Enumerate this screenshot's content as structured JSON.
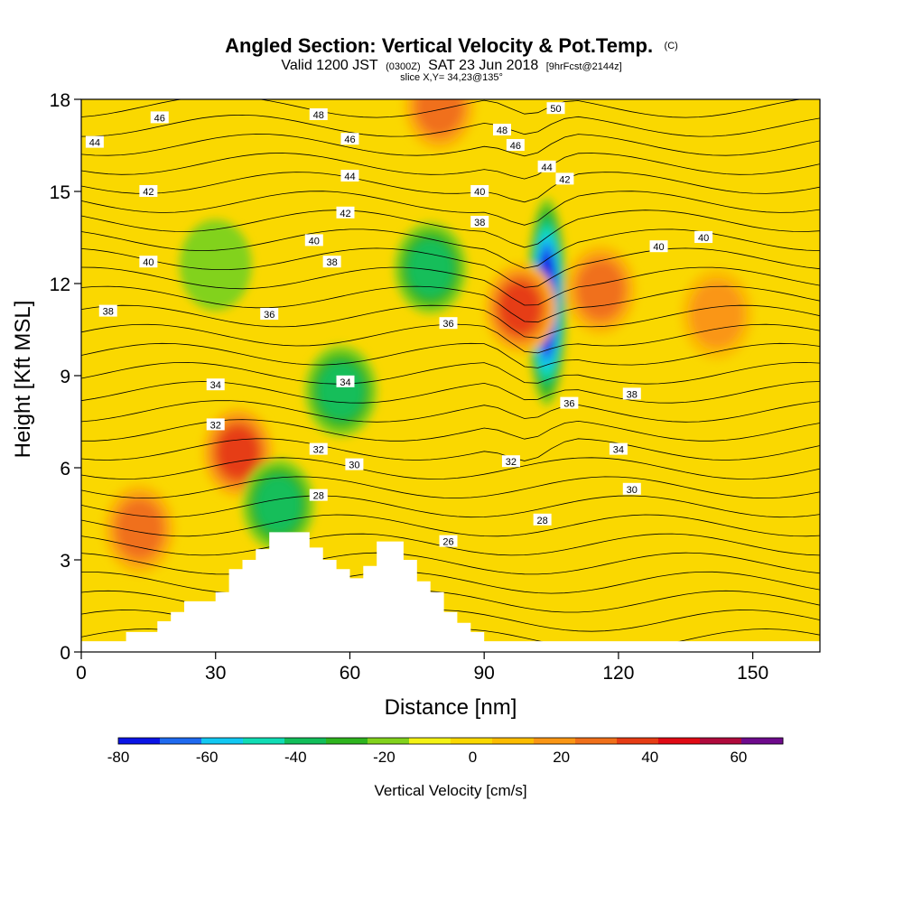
{
  "chart_data": {
    "type": "heatmap",
    "title": "Angled Section: Vertical Velocity & Pot.Temp.",
    "title_mark": "(C)",
    "subtitle_parts": [
      "Valid 1200 JST",
      "(0300Z)",
      "SAT 23 Jun 2018",
      "[9hrFcst@2144z]"
    ],
    "slice_label": "slice X,Y= 34,23@135°",
    "xlabel": "Distance [nm]",
    "ylabel": "Height [Kft MSL]",
    "xlim": [
      0,
      165
    ],
    "ylim": [
      0,
      18
    ],
    "x_ticks": [
      0,
      30,
      60,
      90,
      120,
      150
    ],
    "y_ticks": [
      0,
      3,
      6,
      9,
      12,
      15,
      18
    ],
    "grid": false,
    "colorbar": {
      "label": "Vertical Velocity [cm/s]",
      "min": -80,
      "max": 70,
      "step": 10,
      "tick_values": [
        -80,
        -60,
        -40,
        -20,
        0,
        20,
        40,
        60
      ],
      "colors": [
        "#0a14e6",
        "#1f6af0",
        "#12c8f2",
        "#10dcb4",
        "#12be5a",
        "#2eb41e",
        "#82d21c",
        "#f4f214",
        "#fad800",
        "#fcbc00",
        "#fa9614",
        "#f0701a",
        "#e63c14",
        "#e00a14",
        "#b00a3c",
        "#6e0a8c"
      ]
    },
    "background_value": 5,
    "features": [
      {
        "kind": "downdraft",
        "name": "strong downdraft core",
        "x": 104,
        "y": 11.4,
        "peak": -75
      },
      {
        "kind": "updraft",
        "name": "updraft west of core",
        "x": 98,
        "y": 11.2,
        "peak": 45
      },
      {
        "kind": "updraft",
        "name": "updraft near summit",
        "x": 80,
        "y": 17.8,
        "peak": 32
      },
      {
        "kind": "updraft",
        "name": "lee wave updraft",
        "x": 35,
        "y": 6.5,
        "peak": 40
      },
      {
        "kind": "updraft",
        "name": "low-level updraft",
        "x": 13,
        "y": 4.0,
        "peak": 30
      },
      {
        "kind": "downdraft",
        "name": "downslope band",
        "x": 44,
        "y": 4.8,
        "peak": -38
      },
      {
        "kind": "downdraft",
        "name": "mid-level band",
        "x": 58,
        "y": 8.5,
        "peak": -32
      },
      {
        "kind": "downdraft",
        "name": "upper sinking band",
        "x": 78,
        "y": 12.5,
        "peak": -30
      },
      {
        "kind": "downdraft",
        "name": "upper-left sinking",
        "x": 30,
        "y": 12.6,
        "peak": -15
      },
      {
        "kind": "updraft",
        "name": "right-side updraft",
        "x": 116,
        "y": 11.8,
        "peak": 30
      },
      {
        "kind": "updraft",
        "name": "far-right updraft",
        "x": 142,
        "y": 11.0,
        "peak": 20
      }
    ],
    "terrain_profile": {
      "x": [
        0,
        10,
        10,
        17,
        17,
        20,
        20,
        23,
        23,
        30,
        30,
        33,
        33,
        36,
        36,
        39,
        39,
        42,
        42,
        45,
        45,
        51,
        51,
        54,
        54,
        57,
        57,
        60,
        60,
        63,
        63,
        66,
        66,
        69,
        69,
        72,
        72,
        75,
        75,
        78,
        78,
        81,
        81,
        84,
        84,
        87,
        87,
        90,
        90,
        165
      ],
      "height": [
        0.35,
        0.35,
        0.65,
        0.65,
        1.0,
        1.0,
        1.3,
        1.3,
        1.65,
        1.65,
        1.95,
        1.95,
        2.7,
        2.7,
        3.0,
        3.0,
        3.35,
        3.35,
        3.9,
        3.9,
        3.9,
        3.9,
        3.4,
        3.4,
        3.0,
        3.0,
        2.7,
        2.7,
        2.4,
        2.4,
        2.8,
        2.8,
        3.6,
        3.6,
        3.6,
        3.6,
        3.0,
        3.0,
        2.3,
        2.3,
        1.95,
        1.95,
        1.3,
        1.3,
        0.95,
        0.95,
        0.65,
        0.65,
        0.35,
        0.35
      ]
    },
    "isentrope_labels": [
      {
        "value": "46",
        "x": 17.5,
        "y": 17.4
      },
      {
        "value": "44",
        "x": 3,
        "y": 16.6
      },
      {
        "value": "48",
        "x": 53,
        "y": 17.5
      },
      {
        "value": "50",
        "x": 106,
        "y": 17.7
      },
      {
        "value": "48",
        "x": 94,
        "y": 17.0
      },
      {
        "value": "46",
        "x": 60,
        "y": 16.7
      },
      {
        "value": "46",
        "x": 97,
        "y": 16.5
      },
      {
        "value": "44",
        "x": 60,
        "y": 15.5
      },
      {
        "value": "44",
        "x": 104,
        "y": 15.8
      },
      {
        "value": "42",
        "x": 108,
        "y": 15.4
      },
      {
        "value": "42",
        "x": 15,
        "y": 15.0
      },
      {
        "value": "40",
        "x": 89,
        "y": 15.0
      },
      {
        "value": "42",
        "x": 59,
        "y": 14.3
      },
      {
        "value": "38",
        "x": 89,
        "y": 14.0
      },
      {
        "value": "40",
        "x": 52,
        "y": 13.4
      },
      {
        "value": "40",
        "x": 139,
        "y": 13.5
      },
      {
        "value": "40",
        "x": 129,
        "y": 13.2
      },
      {
        "value": "40",
        "x": 15,
        "y": 12.7
      },
      {
        "value": "38",
        "x": 56,
        "y": 12.7
      },
      {
        "value": "38",
        "x": 6,
        "y": 11.1
      },
      {
        "value": "36",
        "x": 42,
        "y": 11.0
      },
      {
        "value": "36",
        "x": 82,
        "y": 10.7
      },
      {
        "value": "34",
        "x": 30,
        "y": 8.7
      },
      {
        "value": "34",
        "x": 59,
        "y": 8.8
      },
      {
        "value": "38",
        "x": 123,
        "y": 8.4
      },
      {
        "value": "36",
        "x": 109,
        "y": 8.1
      },
      {
        "value": "32",
        "x": 30,
        "y": 7.4
      },
      {
        "value": "32",
        "x": 53,
        "y": 6.6
      },
      {
        "value": "34",
        "x": 120,
        "y": 6.6
      },
      {
        "value": "30",
        "x": 61,
        "y": 6.1
      },
      {
        "value": "32",
        "x": 96,
        "y": 6.2
      },
      {
        "value": "30",
        "x": 123,
        "y": 5.3
      },
      {
        "value": "28",
        "x": 53,
        "y": 5.1
      },
      {
        "value": "28",
        "x": 103,
        "y": 4.3
      },
      {
        "value": "26",
        "x": 82,
        "y": 3.6
      }
    ]
  }
}
